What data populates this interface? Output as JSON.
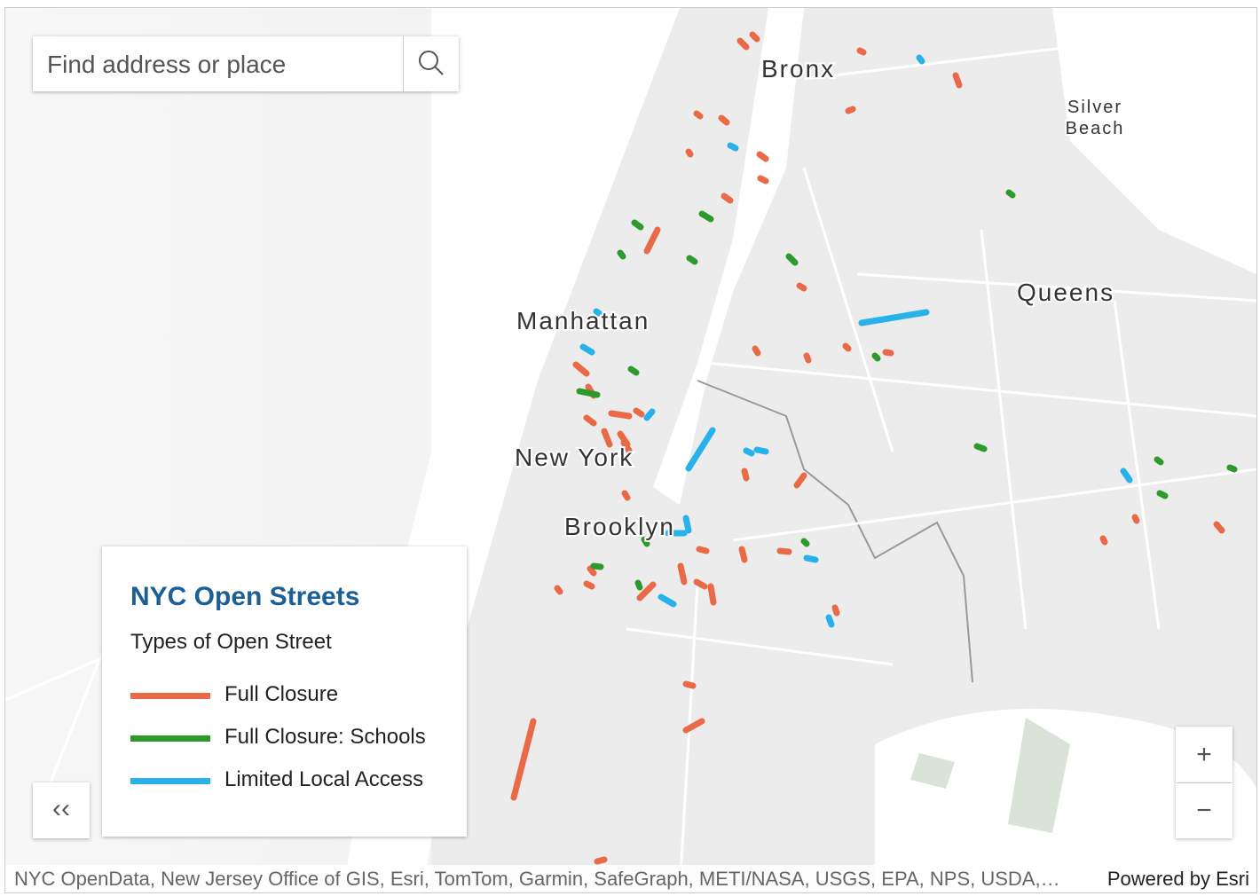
{
  "search": {
    "placeholder": "Find address or place"
  },
  "map_labels": [
    "Bronx",
    "Silver Beach",
    "Manhattan",
    "Queens",
    "New York",
    "Brooklyn"
  ],
  "legend": {
    "title": "NYC Open Streets",
    "subtitle": "Types of Open Street",
    "items": [
      {
        "label": "Full Closure",
        "color": "#ea6a47"
      },
      {
        "label": "Full Closure: Schools",
        "color": "#2e9a2c"
      },
      {
        "label": "Limited Local Access",
        "color": "#28b1ea"
      }
    ]
  },
  "controls": {
    "collapse": "‹‹",
    "zoom_in": "+",
    "zoom_out": "−"
  },
  "attribution": "NYC OpenData, New Jersey Office of GIS, Esri, TomTom, Garmin, SafeGraph, METI/NASA, USGS, EPA, NPS, USDA,…",
  "powered_by": "Powered by Esri"
}
